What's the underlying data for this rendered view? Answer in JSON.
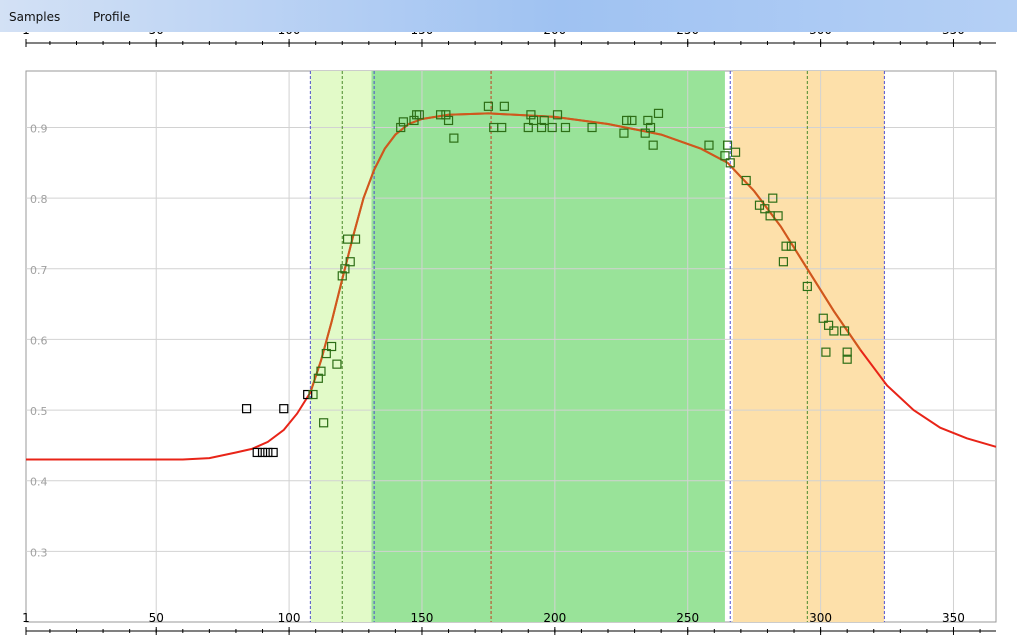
{
  "menu": {
    "samples": "Samples",
    "profile": "Profile"
  },
  "chart_data": {
    "type": "scatter",
    "title": "",
    "xlabel": "",
    "ylabel": "",
    "xlim": [
      1,
      366
    ],
    "ylim": [
      0.2,
      0.98
    ],
    "x_ticks": [
      1,
      50,
      100,
      150,
      200,
      250,
      300,
      350
    ],
    "y_ticks": [
      0.3,
      0.4,
      0.5,
      0.6,
      0.7,
      0.8,
      0.9
    ],
    "grid": true,
    "colors": {
      "curve": "#e82418",
      "curve_season": "#c8651e",
      "point_in_season": "#2d6e16",
      "point_out_season": "#000000",
      "green_up_band": "#e2fac8",
      "maturity_band": "#99e399",
      "senescence_band": "#fde0aa",
      "grid": "#d2d2d2"
    },
    "bands": [
      {
        "name": "green-up",
        "start": 108,
        "end": 131
      },
      {
        "name": "maturity",
        "start": 131,
        "end": 264
      },
      {
        "name": "senescence",
        "start": 267,
        "end": 324
      }
    ],
    "markers": [
      {
        "x": 108,
        "color": "#5050d0"
      },
      {
        "x": 120,
        "color": "#4a8a2a"
      },
      {
        "x": 132,
        "color": "#5050d0"
      },
      {
        "x": 176,
        "color": "#c04020"
      },
      {
        "x": 266,
        "color": "#5050d0"
      },
      {
        "x": 295,
        "color": "#4a8a2a"
      },
      {
        "x": 324,
        "color": "#5050d0"
      }
    ],
    "series": [
      {
        "type": "line",
        "values": [
          [
            1,
            0.43
          ],
          [
            60,
            0.43
          ],
          [
            70,
            0.432
          ],
          [
            80,
            0.44
          ],
          [
            86,
            0.445
          ],
          [
            92,
            0.455
          ],
          [
            98,
            0.472
          ],
          [
            103,
            0.495
          ],
          [
            108,
            0.525
          ],
          [
            112,
            0.57
          ],
          [
            116,
            0.625
          ],
          [
            120,
            0.685
          ],
          [
            124,
            0.745
          ],
          [
            128,
            0.8
          ],
          [
            132,
            0.84
          ],
          [
            136,
            0.87
          ],
          [
            140,
            0.89
          ],
          [
            145,
            0.905
          ],
          [
            150,
            0.912
          ],
          [
            160,
            0.918
          ],
          [
            175,
            0.92
          ],
          [
            200,
            0.915
          ],
          [
            220,
            0.905
          ],
          [
            240,
            0.89
          ],
          [
            255,
            0.87
          ],
          [
            265,
            0.85
          ],
          [
            275,
            0.81
          ],
          [
            285,
            0.76
          ],
          [
            295,
            0.7
          ],
          [
            305,
            0.64
          ],
          [
            315,
            0.585
          ],
          [
            325,
            0.535
          ],
          [
            335,
            0.5
          ],
          [
            345,
            0.475
          ],
          [
            355,
            0.46
          ],
          [
            366,
            0.448
          ]
        ]
      },
      {
        "type": "scatter",
        "points": [
          [
            84,
            0.502
          ],
          [
            88,
            0.44
          ],
          [
            90,
            0.44
          ],
          [
            92,
            0.44
          ],
          [
            94,
            0.44
          ],
          [
            98,
            0.502
          ],
          [
            107,
            0.522
          ],
          [
            109,
            0.522
          ],
          [
            111,
            0.545
          ],
          [
            112,
            0.555
          ],
          [
            113,
            0.482
          ],
          [
            114,
            0.58
          ],
          [
            116,
            0.59
          ],
          [
            118,
            0.565
          ],
          [
            120,
            0.69
          ],
          [
            121,
            0.7
          ],
          [
            122,
            0.742
          ],
          [
            123,
            0.71
          ],
          [
            125,
            0.742
          ],
          [
            142,
            0.9
          ],
          [
            143,
            0.908
          ],
          [
            147,
            0.91
          ],
          [
            148,
            0.918
          ],
          [
            149,
            0.918
          ],
          [
            157,
            0.918
          ],
          [
            159,
            0.918
          ],
          [
            160,
            0.91
          ],
          [
            162,
            0.885
          ],
          [
            175,
            0.93
          ],
          [
            177,
            0.9
          ],
          [
            180,
            0.9
          ],
          [
            181,
            0.93
          ],
          [
            190,
            0.9
          ],
          [
            191,
            0.918
          ],
          [
            192,
            0.91
          ],
          [
            195,
            0.9
          ],
          [
            196,
            0.91
          ],
          [
            199,
            0.9
          ],
          [
            201,
            0.918
          ],
          [
            204,
            0.9
          ],
          [
            214,
            0.9
          ],
          [
            226,
            0.892
          ],
          [
            227,
            0.91
          ],
          [
            229,
            0.91
          ],
          [
            234,
            0.892
          ],
          [
            235,
            0.91
          ],
          [
            236,
            0.9
          ],
          [
            237,
            0.875
          ],
          [
            239,
            0.92
          ],
          [
            258,
            0.875
          ],
          [
            264,
            0.86
          ],
          [
            265,
            0.875
          ],
          [
            266,
            0.85
          ],
          [
            268,
            0.865
          ],
          [
            272,
            0.825
          ],
          [
            277,
            0.79
          ],
          [
            279,
            0.785
          ],
          [
            281,
            0.775
          ],
          [
            282,
            0.8
          ],
          [
            284,
            0.775
          ],
          [
            286,
            0.71
          ],
          [
            287,
            0.732
          ],
          [
            289,
            0.732
          ],
          [
            295,
            0.675
          ],
          [
            301,
            0.63
          ],
          [
            302,
            0.582
          ],
          [
            303,
            0.62
          ],
          [
            305,
            0.612
          ],
          [
            309,
            0.612
          ],
          [
            310,
            0.582
          ],
          [
            310,
            0.572
          ]
        ]
      }
    ]
  }
}
